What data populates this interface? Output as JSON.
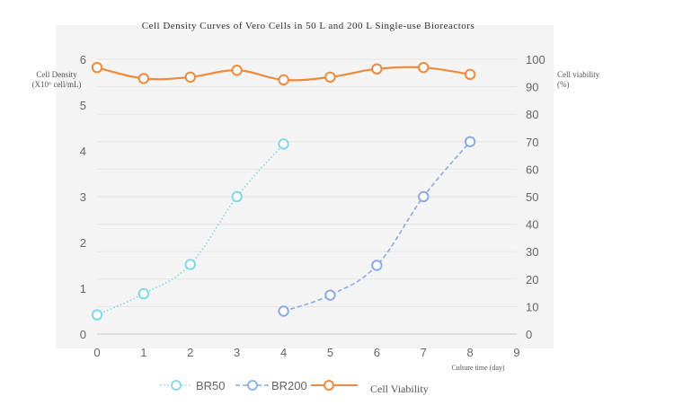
{
  "chart_data": {
    "type": "line",
    "title": "Cell Density Curves of Vero Cells in 50 L and 200 L Single-use Bioreactors",
    "xlabel": "Culture time (day)",
    "ylabel_left_line1": "Cell Density",
    "ylabel_left_line2": "(X10⁶ cell/mL)",
    "ylabel_right_line1": "Cell viability",
    "ylabel_right_line2": "(%)",
    "x_ticks": [
      "0",
      "1",
      "2",
      "3",
      "4",
      "5",
      "6",
      "7",
      "8",
      "9"
    ],
    "y_left_ticks": [
      "0",
      "1",
      "2",
      "3",
      "4",
      "5",
      "6"
    ],
    "y_right_ticks": [
      "0",
      "10",
      "20",
      "30",
      "40",
      "50",
      "60",
      "70",
      "80",
      "90",
      "100"
    ],
    "xlim": [
      0,
      9
    ],
    "ylim_left": [
      0,
      6
    ],
    "ylim_right": [
      0,
      100
    ],
    "grid": true,
    "legend_position": "bottom",
    "series": [
      {
        "name": "BR50",
        "axis": "left",
        "color": "#7fd8e6",
        "line_style": "dotted",
        "x": [
          0,
          1,
          2,
          3,
          4
        ],
        "values": [
          0.42,
          0.88,
          1.52,
          3.0,
          4.15
        ]
      },
      {
        "name": "BR200",
        "axis": "left",
        "color": "#8aaae6",
        "line_style": "dashed",
        "x": [
          4,
          5,
          6,
          7,
          8
        ],
        "values": [
          0.5,
          0.85,
          1.5,
          3.0,
          4.2
        ]
      },
      {
        "name": "Cell Viability",
        "axis": "right",
        "color": "#f0893a",
        "line_style": "solid",
        "x": [
          0,
          1,
          2,
          3,
          4,
          5,
          6,
          7,
          8
        ],
        "values": [
          97,
          93,
          93.5,
          96,
          92.5,
          93.5,
          96.5,
          97,
          94.5
        ]
      }
    ]
  }
}
